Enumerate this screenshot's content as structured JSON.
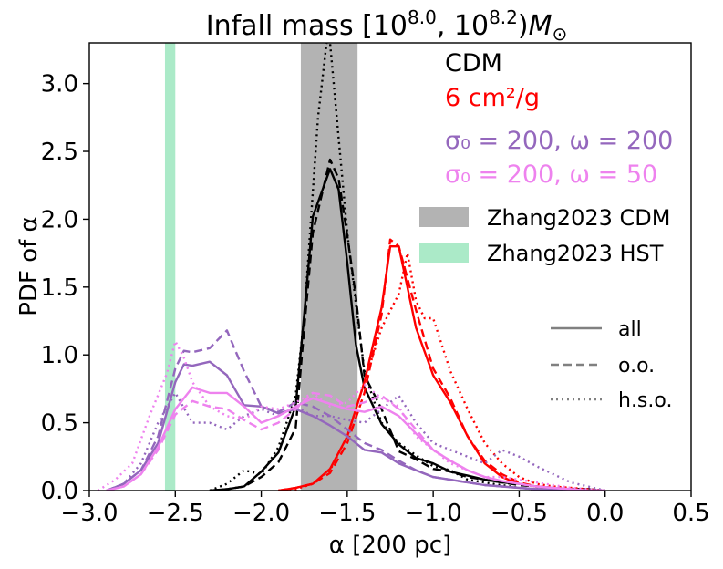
{
  "chart_data": {
    "type": "line",
    "title": "Infall mass [10^8.0, 10^8.2)M⊙",
    "title_parts": {
      "pre": "Infall mass [10",
      "e1": "8.0",
      "mid": ", 10",
      "e2": "8.2",
      "post": ")",
      "m": "M",
      "sun": "⊙"
    },
    "xlabel": "α [200 pc]",
    "ylabel": "PDF of α",
    "xlim": [
      -3.0,
      0.5
    ],
    "ylim": [
      0.0,
      3.3
    ],
    "xticks": [
      -3.0,
      -2.5,
      -2.0,
      -1.5,
      -1.0,
      -0.5,
      0.0,
      0.5
    ],
    "xtick_labels": [
      "−3.0",
      "−2.5",
      "−2.0",
      "−1.5",
      "−1.0",
      "−0.5",
      "0.0",
      "0.5"
    ],
    "yticks": [
      0.0,
      0.5,
      1.0,
      1.5,
      2.0,
      2.5,
      3.0
    ],
    "ytick_labels": [
      "0.0",
      "0.5",
      "1.0",
      "1.5",
      "2.0",
      "2.5",
      "3.0"
    ],
    "colors": {
      "cdm": "#000000",
      "sidm6": "#ff0000",
      "w200": "#9467bd",
      "w50": "#ee82ee",
      "band_cdm": "#b3b3b3",
      "band_hst": "#abeac8",
      "style_key": "#808080"
    },
    "model_labels": [
      {
        "key": "cdm",
        "text": "CDM"
      },
      {
        "key": "sidm6",
        "text": "6 cm²/g"
      },
      {
        "key": "w200",
        "text": "σ₀ = 200, ω = 200"
      },
      {
        "key": "w50",
        "text": "σ₀ = 200, ω = 50"
      }
    ],
    "bands": [
      {
        "name": "Zhang2023 CDM",
        "x": [
          -1.77,
          -1.44
        ],
        "color": "#b3b3b3"
      },
      {
        "name": "Zhang2023 HST",
        "x": [
          -2.56,
          -2.5
        ],
        "color": "#abeac8"
      }
    ],
    "line_styles": [
      {
        "name": "all",
        "dash": "solid"
      },
      {
        "name": "o.o.",
        "dash": "dashed"
      },
      {
        "name": "h.s.o.",
        "dash": "dotted"
      }
    ],
    "series": [
      {
        "model": "cdm",
        "style": "all",
        "x": [
          -2.3,
          -2.2,
          -2.1,
          -2.0,
          -1.9,
          -1.8,
          -1.75,
          -1.7,
          -1.6,
          -1.55,
          -1.5,
          -1.45,
          -1.4,
          -1.3,
          -1.2,
          -1.1,
          -1.0,
          -0.9,
          -0.8,
          -0.7,
          -0.6,
          -0.5,
          -0.4,
          -0.3,
          -0.2,
          -0.1,
          0.0
        ],
        "y": [
          0.0,
          0.01,
          0.03,
          0.14,
          0.28,
          0.62,
          1.3,
          2.02,
          2.37,
          2.22,
          1.68,
          1.08,
          0.76,
          0.49,
          0.34,
          0.24,
          0.2,
          0.14,
          0.11,
          0.08,
          0.06,
          0.05,
          0.03,
          0.02,
          0.01,
          0.01,
          0.0
        ]
      },
      {
        "model": "cdm",
        "style": "o.o.",
        "x": [
          -2.3,
          -2.2,
          -2.1,
          -2.0,
          -1.9,
          -1.8,
          -1.75,
          -1.7,
          -1.6,
          -1.55,
          -1.5,
          -1.45,
          -1.4,
          -1.3,
          -1.2,
          -1.1,
          -1.0,
          -0.9,
          -0.8,
          -0.7,
          -0.6,
          -0.5,
          -0.4,
          -0.3,
          -0.2,
          -0.1,
          0.0
        ],
        "y": [
          0.0,
          0.01,
          0.03,
          0.1,
          0.21,
          0.46,
          1.2,
          1.9,
          2.44,
          2.3,
          1.88,
          1.43,
          0.85,
          0.6,
          0.29,
          0.23,
          0.16,
          0.14,
          0.1,
          0.08,
          0.06,
          0.04,
          0.03,
          0.02,
          0.01,
          0.01,
          0.0
        ]
      },
      {
        "model": "cdm",
        "style": "h.s.o.",
        "x": [
          -2.3,
          -2.2,
          -2.1,
          -2.0,
          -1.9,
          -1.8,
          -1.75,
          -1.7,
          -1.67,
          -1.62,
          -1.6,
          -1.55,
          -1.5,
          -1.45,
          -1.4,
          -1.35,
          -1.3,
          -1.2,
          -1.1,
          -1.0,
          -0.9,
          -0.8,
          -0.7,
          -0.6,
          -0.5,
          -0.4,
          -0.3,
          -0.2,
          -0.1,
          0.0
        ],
        "y": [
          0.0,
          0.05,
          0.15,
          0.12,
          0.32,
          0.7,
          1.28,
          2.2,
          2.75,
          3.3,
          3.3,
          2.6,
          1.9,
          1.38,
          0.88,
          0.68,
          0.5,
          0.35,
          0.26,
          0.18,
          0.15,
          0.08,
          0.06,
          0.04,
          0.02,
          0.01,
          0.01,
          0.0,
          0.0,
          0.0
        ]
      },
      {
        "model": "sidm6",
        "style": "all",
        "x": [
          -1.9,
          -1.8,
          -1.7,
          -1.6,
          -1.5,
          -1.4,
          -1.3,
          -1.25,
          -1.2,
          -1.1,
          -1.0,
          -0.9,
          -0.8,
          -0.7,
          -0.6,
          -0.5,
          -0.4,
          -0.3,
          -0.2,
          -0.1,
          0.0
        ],
        "y": [
          0.0,
          0.02,
          0.05,
          0.16,
          0.4,
          0.8,
          1.35,
          1.8,
          1.8,
          1.2,
          0.85,
          0.65,
          0.4,
          0.2,
          0.1,
          0.05,
          0.03,
          0.02,
          0.01,
          0.0,
          0.0
        ]
      },
      {
        "model": "sidm6",
        "style": "o.o.",
        "x": [
          -1.9,
          -1.8,
          -1.7,
          -1.6,
          -1.5,
          -1.4,
          -1.3,
          -1.25,
          -1.2,
          -1.1,
          -1.0,
          -0.9,
          -0.8,
          -0.7,
          -0.6,
          -0.5,
          -0.4,
          -0.3,
          -0.2,
          -0.1,
          0.0
        ],
        "y": [
          0.0,
          0.02,
          0.05,
          0.13,
          0.35,
          0.72,
          1.3,
          1.85,
          1.8,
          1.33,
          0.9,
          0.68,
          0.4,
          0.22,
          0.12,
          0.06,
          0.03,
          0.02,
          0.01,
          0.0,
          0.0
        ]
      },
      {
        "model": "sidm6",
        "style": "h.s.o.",
        "x": [
          -1.9,
          -1.8,
          -1.7,
          -1.6,
          -1.5,
          -1.4,
          -1.3,
          -1.2,
          -1.15,
          -1.1,
          -1.05,
          -1.0,
          -0.9,
          -0.8,
          -0.7,
          -0.6,
          -0.5,
          -0.4,
          -0.3,
          -0.2,
          -0.1,
          0.0
        ],
        "y": [
          0.0,
          0.01,
          0.05,
          0.15,
          0.4,
          0.8,
          1.2,
          1.45,
          1.75,
          1.4,
          1.27,
          1.27,
          0.88,
          0.6,
          0.35,
          0.2,
          0.1,
          0.05,
          0.03,
          0.02,
          0.01,
          0.0
        ]
      },
      {
        "model": "w200",
        "style": "all",
        "x": [
          -2.9,
          -2.8,
          -2.7,
          -2.6,
          -2.5,
          -2.45,
          -2.4,
          -2.3,
          -2.2,
          -2.1,
          -2.0,
          -1.9,
          -1.8,
          -1.7,
          -1.6,
          -1.5,
          -1.4,
          -1.3,
          -1.2,
          -1.1,
          -1.0,
          -0.9,
          -0.8,
          -0.7,
          -0.6,
          -0.5,
          -0.4,
          -0.3,
          -0.2,
          -0.1,
          0.0
        ],
        "y": [
          0.0,
          0.05,
          0.15,
          0.35,
          0.8,
          0.93,
          0.92,
          0.95,
          0.85,
          0.63,
          0.62,
          0.57,
          0.6,
          0.55,
          0.48,
          0.4,
          0.3,
          0.28,
          0.2,
          0.15,
          0.1,
          0.08,
          0.06,
          0.04,
          0.03,
          0.02,
          0.01,
          0.01,
          0.0,
          0.0,
          0.0
        ]
      },
      {
        "model": "w200",
        "style": "o.o.",
        "x": [
          -2.9,
          -2.8,
          -2.7,
          -2.6,
          -2.5,
          -2.45,
          -2.4,
          -2.3,
          -2.2,
          -2.1,
          -2.0,
          -1.9,
          -1.8,
          -1.7,
          -1.6,
          -1.5,
          -1.4,
          -1.3,
          -1.2,
          -1.1,
          -1.0,
          -0.9,
          -0.8,
          -0.7,
          -0.6,
          -0.5,
          -0.4,
          -0.3,
          -0.2,
          -0.1,
          0.0
        ],
        "y": [
          0.0,
          0.05,
          0.15,
          0.4,
          0.9,
          1.03,
          1.02,
          1.05,
          1.18,
          0.88,
          0.62,
          0.58,
          0.65,
          0.62,
          0.55,
          0.45,
          0.35,
          0.3,
          0.22,
          0.15,
          0.1,
          0.08,
          0.06,
          0.04,
          0.03,
          0.02,
          0.01,
          0.01,
          0.0,
          0.0,
          0.0
        ]
      },
      {
        "model": "w200",
        "style": "h.s.o.",
        "x": [
          -2.9,
          -2.8,
          -2.7,
          -2.6,
          -2.5,
          -2.4,
          -2.3,
          -2.2,
          -2.1,
          -2.0,
          -1.9,
          -1.8,
          -1.7,
          -1.6,
          -1.5,
          -1.4,
          -1.3,
          -1.2,
          -1.1,
          -1.0,
          -0.9,
          -0.8,
          -0.7,
          -0.6,
          -0.5,
          -0.4,
          -0.3,
          -0.2,
          -0.1,
          0.0
        ],
        "y": [
          0.0,
          0.05,
          0.2,
          0.5,
          0.72,
          0.5,
          0.5,
          0.45,
          0.55,
          0.6,
          0.55,
          0.62,
          0.55,
          0.55,
          0.52,
          0.5,
          0.6,
          0.7,
          0.5,
          0.35,
          0.3,
          0.25,
          0.2,
          0.3,
          0.25,
          0.18,
          0.12,
          0.06,
          0.03,
          0.0
        ]
      },
      {
        "model": "w50",
        "style": "all",
        "x": [
          -2.9,
          -2.8,
          -2.7,
          -2.6,
          -2.5,
          -2.4,
          -2.3,
          -2.2,
          -2.1,
          -2.0,
          -1.9,
          -1.8,
          -1.7,
          -1.6,
          -1.5,
          -1.4,
          -1.3,
          -1.2,
          -1.1,
          -1.0,
          -0.9,
          -0.8,
          -0.7,
          -0.6,
          -0.5,
          -0.4,
          -0.3,
          -0.2,
          -0.1,
          0.0
        ],
        "y": [
          0.0,
          0.03,
          0.12,
          0.32,
          0.6,
          0.76,
          0.72,
          0.72,
          0.62,
          0.5,
          0.55,
          0.62,
          0.68,
          0.64,
          0.6,
          0.58,
          0.62,
          0.55,
          0.42,
          0.3,
          0.22,
          0.15,
          0.1,
          0.07,
          0.05,
          0.03,
          0.02,
          0.01,
          0.0,
          0.0
        ]
      },
      {
        "model": "w50",
        "style": "o.o.",
        "x": [
          -2.9,
          -2.8,
          -2.7,
          -2.6,
          -2.5,
          -2.4,
          -2.3,
          -2.2,
          -2.1,
          -2.0,
          -1.9,
          -1.8,
          -1.7,
          -1.6,
          -1.5,
          -1.4,
          -1.3,
          -1.2,
          -1.1,
          -1.0,
          -0.9,
          -0.8,
          -0.7,
          -0.6,
          -0.5,
          -0.4,
          -0.3,
          -0.2,
          -0.1,
          0.0
        ],
        "y": [
          0.0,
          0.03,
          0.12,
          0.3,
          0.56,
          0.66,
          0.62,
          0.6,
          0.52,
          0.45,
          0.5,
          0.6,
          0.72,
          0.7,
          0.62,
          0.65,
          0.7,
          0.6,
          0.45,
          0.3,
          0.22,
          0.15,
          0.1,
          0.07,
          0.05,
          0.03,
          0.02,
          0.01,
          0.0,
          0.0
        ]
      },
      {
        "model": "w50",
        "style": "h.s.o.",
        "x": [
          -2.95,
          -2.85,
          -2.75,
          -2.65,
          -2.55,
          -2.5,
          -2.45,
          -2.4,
          -2.3,
          -2.2,
          -2.1,
          -2.0,
          -1.9,
          -1.8,
          -1.7,
          -1.6,
          -1.5,
          -1.4,
          -1.3,
          -1.2,
          -1.1,
          -1.0,
          -0.9,
          -0.8,
          -0.7,
          -0.6,
          -0.5,
          -0.4,
          -0.3,
          -0.2,
          -0.1,
          0.0
        ],
        "y": [
          0.0,
          0.08,
          0.2,
          0.55,
          0.86,
          1.1,
          0.98,
          0.8,
          0.62,
          0.55,
          0.52,
          0.62,
          0.6,
          0.65,
          0.72,
          0.62,
          0.65,
          0.78,
          0.68,
          0.62,
          0.4,
          0.3,
          0.2,
          0.15,
          0.1,
          0.1,
          0.08,
          0.06,
          0.04,
          0.02,
          0.01,
          0.0
        ]
      }
    ]
  }
}
